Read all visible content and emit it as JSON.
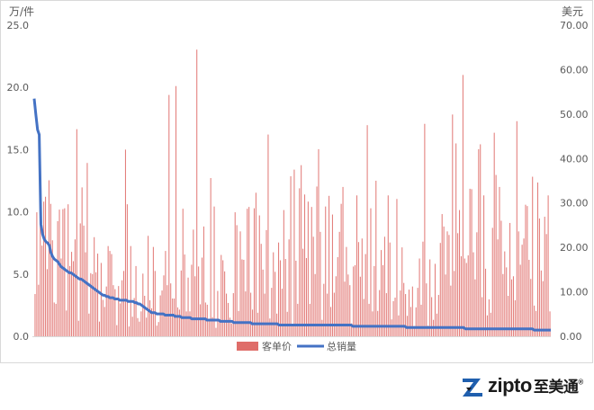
{
  "chart_data": {
    "type": "bar",
    "title": "",
    "left_axis": {
      "title": "万/件",
      "ylim": [
        0,
        25
      ],
      "ticks": [
        "0.0",
        "5.0",
        "10.0",
        "15.0",
        "20.0",
        "25.0"
      ]
    },
    "right_axis": {
      "title": "美元",
      "ylim": [
        0,
        70
      ],
      "ticks": [
        "0.00",
        "10.00",
        "20.00",
        "30.00",
        "40.00",
        "50.00",
        "60.00",
        "70.00"
      ]
    },
    "grid": false,
    "legend_position": "bottom",
    "series": [
      {
        "name": "客单价",
        "kind": "bar",
        "axis": "right",
        "color": "#d9534f",
        "values": [
          9.5,
          27.9,
          11.6,
          25.2,
          20.4,
          30.3,
          31.4,
          15.1,
          35.1,
          29.8,
          21.6,
          7.6,
          7.3,
          25.9,
          28.5,
          17.5,
          28.6,
          28.8,
          5.8,
          29.7,
          15.8,
          19.0,
          16.9,
          21.8,
          46.6,
          3.5,
          25.4,
          33.5,
          24.9,
          18.9,
          39.0,
          5.1,
          14.2,
          14.0,
          22.3,
          14.4,
          18.6,
          3.3,
          16.5,
          8.2,
          6.6,
          11.2,
          20.3,
          19.2,
          18.5,
          11.5,
          10.6,
          2.5,
          11.3,
          7.4,
          12.6,
          14.7,
          42.0,
          29.7,
          2.2,
          20.3,
          4.4,
          8.6,
          15.8,
          4.1,
          3.3,
          5.6,
          14.1,
          9.1,
          4.2,
          22.6,
          8.1,
          6.3,
          20.1,
          14.7,
          2.4,
          3.2,
          9.2,
          10.3,
          13.7,
          19.2,
          11.5,
          54.3,
          11.9,
          8.5,
          8.5,
          56.3,
          6.5,
          6.0,
          14.8,
          28.7,
          18.4,
          5.6,
          13.2,
          5.6,
          16.1,
          24.0,
          13.5,
          64.5,
          15.7,
          7.2,
          17.7,
          24.7,
          7.6,
          7.1,
          3.5,
          35.6,
          4.3,
          29.2,
          1.9,
          10.2,
          3.2,
          18.3,
          17.1,
          14.6,
          9.6,
          7.5,
          4.2,
          2.9,
          9.7,
          27.9,
          25.0,
          5.7,
          23.6,
          17.3,
          17.2,
          10.1,
          28.7,
          29.1,
          9.8,
          6.0,
          28.8,
          32.3,
          5.3,
          27.2,
          20.8,
          15.0,
          9.6,
          23.9,
          45.4,
          4.0,
          10.9,
          18.9,
          14.5,
          5.1,
          21.1,
          17.1,
          10.7,
          28.4,
          17.4,
          5.5,
          21.8,
          36.0,
          2.4,
          37.5,
          17.0,
          7.3,
          33.3,
          38.5,
          19.7,
          31.9,
          17.6,
          30.3,
          7.3,
          29.1,
          22.4,
          14.0,
          33.7,
          42.1,
          23.5,
          3.7,
          11.8,
          29.2,
          9.6,
          31.6,
          6.6,
          27.4,
          9.8,
          13.5,
          17.8,
          23.5,
          29.8,
          33.6,
          12.3,
          20.1,
          13.9,
          11.5,
          2.9,
          15.7,
          16.0,
          31.7,
          21.2,
          13.4,
          22.0,
          8.4,
          18.5,
          47.5,
          7.3,
          28.8,
          5.6,
          15.8,
          35.0,
          5.7,
          10.4,
          19.4,
          16.0,
          22.4,
          9.7,
          31.7,
          21.1,
          3.8,
          7.9,
          8.7,
          30.9,
          4.7,
          10.3,
          20.0,
          12.0,
          9.5,
          4.6,
          10.5,
          6.6,
          11.2,
          2.3,
          6.5,
          10.9,
          17.5,
          7.1,
          21.3,
          47.8,
          11.9,
          2.4,
          17.3,
          8.8,
          3.7,
          16.3,
          5.1,
          9.3,
          21.0,
          27.5,
          24.7,
          13.9,
          23.6,
          22.8,
          11.4,
          49.9,
          14.7,
          43.4,
          23.2,
          28.4,
          18.0,
          58.8,
          17.5,
          16.5,
          18.2,
          33.2,
          33.1,
          18.9,
          12.8,
          23.4,
          42.1,
          43.2,
          8.8,
          31.7,
          15.2,
          4.7,
          8.3,
          5.3,
          24.4,
          45.8,
          36.3,
          21.8,
          33.6,
          26.0,
          14.0,
          19.1,
          15.5,
          9.1,
          25.5,
          12.8,
          13.5,
          8.1,
          48.4,
          23.6,
          16.1,
          20.6,
          22.0,
          29.6,
          29.3,
          17.2,
          12.9,
          35.9,
          6.9,
          5.7,
          34.6,
          26.5,
          14.8,
          12.4,
          26.9,
          23.0,
          31.7,
          5.6
        ],
        "source_note_type": "one value per product, sorted by 总销量 descending"
      },
      {
        "name": "总销量",
        "kind": "line",
        "axis": "left",
        "color": "#4472c4",
        "values": [
          19.1,
          17.8,
          16.6,
          16.2,
          9.0,
          8.2,
          7.8,
          7.6,
          7.5,
          7.3,
          6.7,
          6.4,
          6.2,
          6.1,
          6.0,
          5.8,
          5.6,
          5.5,
          5.4,
          5.3,
          5.2,
          5.1,
          5.1,
          5.0,
          4.9,
          4.8,
          4.7,
          4.6,
          4.6,
          4.5,
          4.4,
          4.3,
          4.2,
          4.1,
          4.0,
          3.9,
          3.8,
          3.7,
          3.6,
          3.5,
          3.4,
          3.3,
          3.3,
          3.2,
          3.2,
          3.1,
          3.1,
          3.1,
          3.0,
          3.0,
          3.0,
          2.9,
          2.9,
          2.9,
          2.9,
          2.9,
          2.8,
          2.8,
          2.8,
          2.8,
          2.7,
          2.7,
          2.6,
          2.6,
          2.5,
          2.4,
          2.3,
          2.2,
          2.1,
          2.0,
          1.9,
          1.9,
          1.9,
          1.8,
          1.8,
          1.8,
          1.8,
          1.8,
          1.7,
          1.7,
          1.7,
          1.7,
          1.7,
          1.7,
          1.6,
          1.6,
          1.6,
          1.6,
          1.5,
          1.5,
          1.5,
          1.5,
          1.5,
          1.5,
          1.4,
          1.4,
          1.4,
          1.4,
          1.4,
          1.4,
          1.4,
          1.4,
          1.4,
          1.3,
          1.3,
          1.3,
          1.3,
          1.3,
          1.3,
          1.3,
          1.3,
          1.2,
          1.2,
          1.2,
          1.2,
          1.2,
          1.2,
          1.2,
          1.2,
          1.1,
          1.1,
          1.1,
          1.1,
          1.1,
          1.1,
          1.1,
          1.1,
          1.1,
          1.1,
          1.1,
          1.0,
          1.0,
          1.0,
          1.0,
          1.0,
          1.0,
          1.0,
          1.0,
          1.0,
          1.0,
          1.0,
          1.0,
          1.0,
          1.0,
          1.0,
          1.0,
          0.9,
          0.9,
          0.9,
          0.9,
          0.9,
          0.9,
          0.9,
          0.9,
          0.9,
          0.9,
          0.9,
          0.9,
          0.9,
          0.9,
          0.9,
          0.9,
          0.9,
          0.9,
          0.9,
          0.9,
          0.9,
          0.9,
          0.9,
          0.9,
          0.9,
          0.9,
          0.9,
          0.9,
          0.9,
          0.9,
          0.9,
          0.9,
          0.9,
          0.9,
          0.9,
          0.9,
          0.9,
          0.9,
          0.9,
          0.9,
          0.9,
          0.9,
          0.9,
          0.9,
          0.8,
          0.8,
          0.8,
          0.8,
          0.8,
          0.8,
          0.8,
          0.8,
          0.8,
          0.8,
          0.8,
          0.8,
          0.8,
          0.8,
          0.8,
          0.8,
          0.8,
          0.8,
          0.8,
          0.8,
          0.8,
          0.8,
          0.8,
          0.8,
          0.8,
          0.8,
          0.8,
          0.8,
          0.8,
          0.8,
          0.8,
          0.8,
          0.7,
          0.7,
          0.7,
          0.7,
          0.7,
          0.7,
          0.7,
          0.7,
          0.7,
          0.7,
          0.7,
          0.7,
          0.7,
          0.7,
          0.7,
          0.7,
          0.7,
          0.7,
          0.7,
          0.7,
          0.7,
          0.7,
          0.7,
          0.7,
          0.7,
          0.7,
          0.7,
          0.7,
          0.7,
          0.7,
          0.7,
          0.7,
          0.7,
          0.7,
          0.7,
          0.6,
          0.6,
          0.6,
          0.6,
          0.6,
          0.6,
          0.6,
          0.6,
          0.6,
          0.6,
          0.6,
          0.6,
          0.6,
          0.6,
          0.6,
          0.6,
          0.6,
          0.6,
          0.6,
          0.6,
          0.6,
          0.6,
          0.6,
          0.6,
          0.6,
          0.6,
          0.6,
          0.6,
          0.6,
          0.6,
          0.6,
          0.6,
          0.6,
          0.6,
          0.6,
          0.6,
          0.6,
          0.6,
          0.6,
          0.6,
          0.6,
          0.5,
          0.5,
          0.5,
          0.5,
          0.5,
          0.5,
          0.5,
          0.5,
          0.5,
          0.5,
          0.5
        ]
      }
    ]
  },
  "logo": {
    "brand_latin": "zipto",
    "brand_cn": "至美通",
    "registered": "®"
  }
}
